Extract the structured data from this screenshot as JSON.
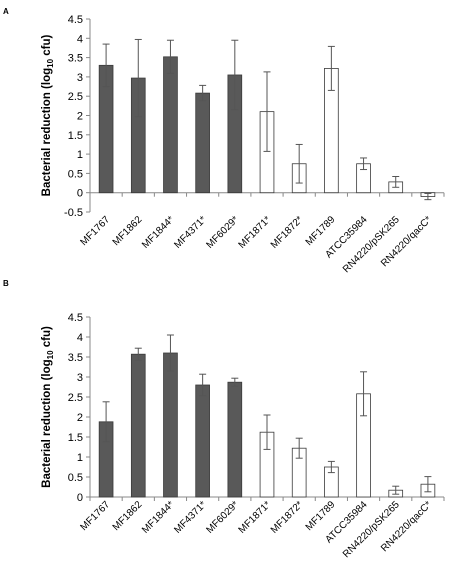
{
  "chart_data": [
    {
      "panel": "A",
      "type": "bar",
      "ylabel": "Bacterial reduction (log",
      "ylabel_sub": "10",
      "ylabel_tail": " cfu)",
      "ylim": [
        -0.5,
        4.5
      ],
      "yticks": [
        "-0.5",
        "0",
        "0.5",
        "1",
        "1.5",
        "2",
        "2.5",
        "3",
        "3.5",
        "4",
        "4.5"
      ],
      "categories": [
        "MF1767",
        "MF1862",
        "MF1844*",
        "MF4371*",
        "MF6029*",
        "MF1871*",
        "MF1872*",
        "MF1789",
        "ATCC35984",
        "RN4220/pSK265",
        "RN4220/qacC*"
      ],
      "values": [
        3.3,
        2.97,
        3.52,
        2.58,
        3.05,
        2.1,
        0.75,
        3.22,
        0.75,
        0.28,
        -0.1
      ],
      "errors": [
        0.55,
        1.0,
        0.43,
        0.2,
        0.9,
        1.03,
        0.5,
        0.57,
        0.15,
        0.14,
        0.08
      ],
      "fill": [
        "dark",
        "dark",
        "dark",
        "dark",
        "dark",
        "white",
        "white",
        "white",
        "white",
        "white",
        "white"
      ],
      "grid": false
    },
    {
      "panel": "B",
      "type": "bar",
      "ylabel": "Bacterial reduction (log",
      "ylabel_sub": "10",
      "ylabel_tail": " cfu)",
      "ylim": [
        0,
        4.5
      ],
      "yticks": [
        "0",
        "0.5",
        "1",
        "1.5",
        "2",
        "2.5",
        "3",
        "3.5",
        "4",
        "4.5"
      ],
      "categories": [
        "MF1767",
        "MF1862",
        "MF1844*",
        "MF4371*",
        "MF6029*",
        "MF1871*",
        "MF1872*",
        "MF1789",
        "ATCC35984",
        "RN4220/pSK265",
        "RN4220/qacC*"
      ],
      "values": [
        1.88,
        3.57,
        3.6,
        2.8,
        2.87,
        1.62,
        1.22,
        0.75,
        2.58,
        0.17,
        0.32
      ],
      "errors": [
        0.5,
        0.15,
        0.45,
        0.27,
        0.1,
        0.43,
        0.25,
        0.14,
        0.55,
        0.1,
        0.19
      ],
      "fill": [
        "dark",
        "dark",
        "dark",
        "dark",
        "dark",
        "white",
        "white",
        "white",
        "white",
        "white",
        "white"
      ],
      "grid": false
    }
  ],
  "colors": {
    "dark": "#595959",
    "white": "#ffffff",
    "edge": "#3a3a3a",
    "axis": "#888888"
  }
}
